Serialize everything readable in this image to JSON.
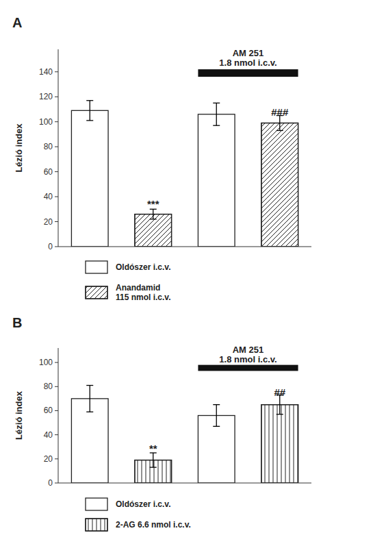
{
  "chart_data": [
    {
      "type": "bar",
      "title": "A",
      "y_label": "Lézió index",
      "categories": [
        null,
        null,
        null,
        null
      ],
      "series": [
        {
          "name": "Oldószer i.c.v.",
          "color": "white",
          "values": [
            109,
            null,
            106,
            null
          ],
          "errors": [
            8,
            null,
            9,
            null
          ]
        },
        {
          "name": "Anandamid\n115 nmol i.c.v.",
          "color": "white",
          "values": [
            null,
            26,
            null,
            99
          ],
          "errors": [
            null,
            4,
            null,
            6
          ]
        }
      ],
      "annotations": [
        {
          "text": "***",
          "category": 1,
          "y": 37
        },
        {
          "text": "###",
          "category": 3,
          "y": 110
        },
        {
          "text": "AM 251\n1.8 nmol i.c.v.",
          "y": 144,
          "span": [
            2,
            3
          ],
          "bar": {
            "y": 136,
            "height": 6
          }
        }
      ],
      "ylim": [
        0,
        158
      ],
      "yticks": [
        0,
        20,
        40,
        60,
        80,
        100,
        120,
        140
      ],
      "grid": false,
      "legend": "bottom",
      "tick_labels": "y"
    },
    {
      "type": "bar",
      "title": "B",
      "y_label": "Lézió index",
      "categories": [
        null,
        null,
        null,
        null
      ],
      "series": [
        {
          "name": "Oldószer i.c.v.",
          "color": "white",
          "values": [
            70,
            null,
            56,
            null
          ],
          "errors": [
            11,
            null,
            9,
            null
          ]
        },
        {
          "name": "2-AG 6.6 nmol i.c.v.",
          "color": "white",
          "values": [
            null,
            19,
            null,
            65
          ],
          "errors": [
            null,
            6,
            null,
            8
          ]
        }
      ],
      "annotations": [
        {
          "text": "**",
          "category": 1,
          "y": 31
        },
        {
          "text": "##",
          "category": 3,
          "y": 78
        },
        {
          "text": "AM 251\n1.8 nmol i.c.v.",
          "y": 99,
          "span": [
            2,
            3
          ],
          "bar": {
            "y": 93,
            "height": 5
          }
        }
      ],
      "ylim": [
        0,
        112
      ],
      "yticks": [
        0,
        20,
        40,
        60,
        80,
        100
      ],
      "grid": false,
      "legend": "bottom",
      "tick_labels": "y"
    }
  ]
}
